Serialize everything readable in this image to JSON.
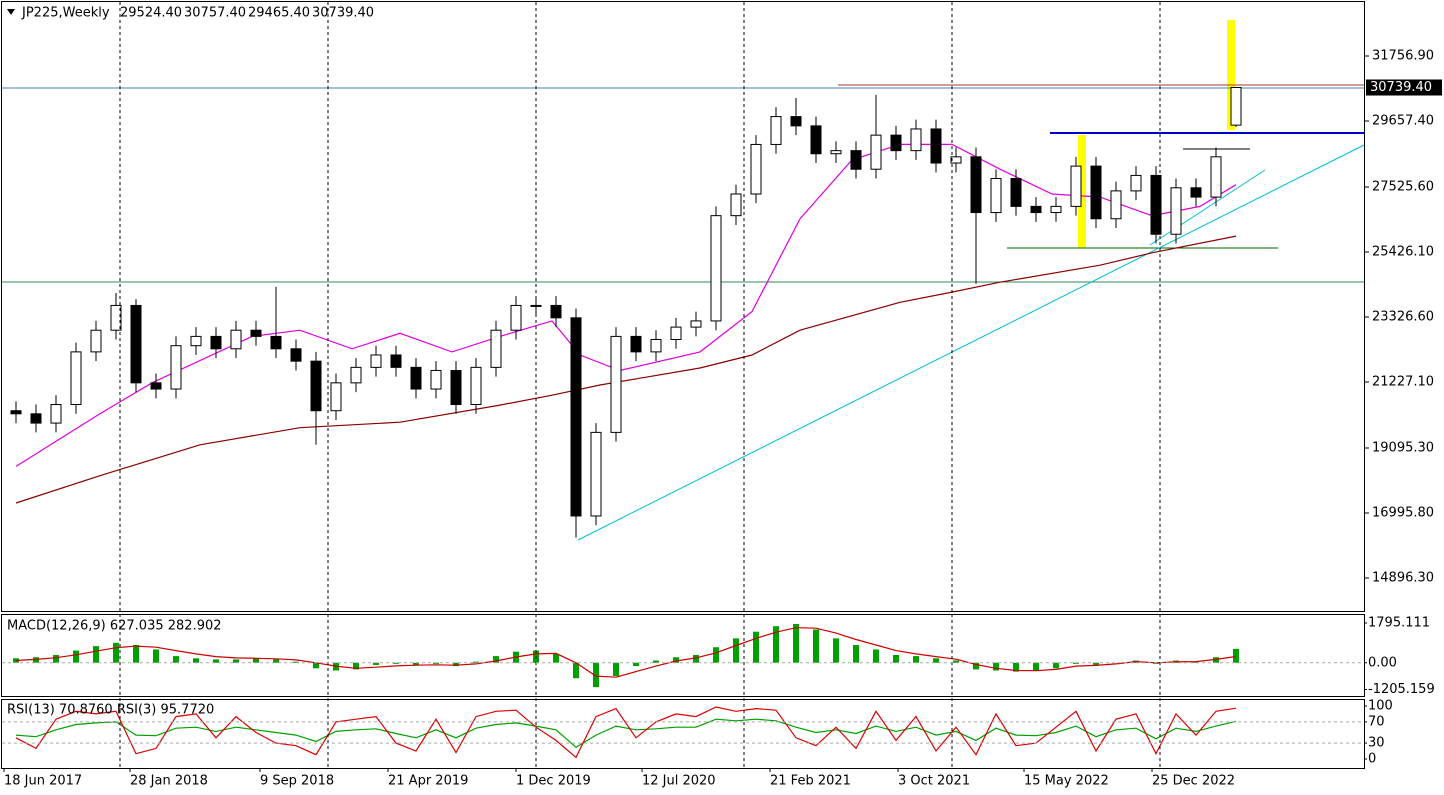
{
  "chart_data": [
    {
      "type": "candlestick",
      "header": {
        "symbol": "JP225,Weekly",
        "ohlc": [
          {
            "value": 29524.4,
            "label": "29524.40"
          },
          {
            "value": 30757.4,
            "label": "30757.40"
          },
          {
            "value": 29465.4,
            "label": "29465.40"
          },
          {
            "value": 30739.4,
            "label": "30739.40"
          }
        ]
      },
      "x": [
        0,
        5,
        10,
        15,
        20,
        25,
        30,
        35,
        40,
        45,
        50,
        55,
        60,
        65,
        70,
        75,
        80,
        85,
        90,
        95,
        100,
        105,
        110,
        115,
        120,
        125,
        130,
        135,
        140,
        145,
        150,
        155,
        160,
        165,
        170,
        175,
        180,
        185,
        190,
        195,
        200,
        205,
        210,
        215,
        220,
        225,
        230,
        235,
        240,
        245,
        250,
        255,
        260,
        265,
        270,
        275,
        280,
        285,
        290,
        295,
        300,
        305
      ],
      "open": [
        20300,
        20200,
        19900,
        20500,
        22200,
        22900,
        23700,
        21200,
        21000,
        22400,
        22700,
        22300,
        22900,
        22700,
        22300,
        21900,
        20300,
        21200,
        21700,
        22100,
        21700,
        21000,
        21600,
        20500,
        21700,
        22900,
        23700,
        23700,
        23300,
        16900,
        19600,
        22700,
        22200,
        22600,
        23000,
        23200,
        26600,
        27300,
        28900,
        29800,
        29500,
        28600,
        28700,
        28100,
        29200,
        28700,
        29400,
        28300,
        28500,
        26700,
        27800,
        26900,
        26700,
        26900,
        28200,
        26500,
        27400,
        27900,
        26000,
        27500,
        27200,
        29524.4
      ],
      "high": [
        20600,
        20500,
        20800,
        22500,
        23200,
        24100,
        23900,
        21500,
        22700,
        23000,
        23000,
        23200,
        23200,
        24300,
        22600,
        22200,
        21500,
        22000,
        22400,
        22400,
        22000,
        21900,
        21900,
        22000,
        23200,
        24000,
        24000,
        24000,
        23600,
        19900,
        23000,
        23000,
        22900,
        23300,
        23500,
        26900,
        27600,
        29200,
        30100,
        30400,
        29800,
        29000,
        29000,
        30500,
        29500,
        29700,
        29700,
        28800,
        28800,
        28100,
        28100,
        27200,
        27200,
        28500,
        28500,
        27700,
        28200,
        28200,
        27800,
        27800,
        28800,
        30757.4
      ],
      "low": [
        19900,
        19600,
        19600,
        20200,
        21900,
        22600,
        20900,
        20700,
        20700,
        22100,
        22000,
        22000,
        22400,
        22000,
        21600,
        19200,
        20000,
        20900,
        21400,
        21400,
        20700,
        20700,
        20200,
        20200,
        21400,
        22600,
        23400,
        23000,
        16200,
        16600,
        19300,
        21900,
        21900,
        22300,
        22700,
        22900,
        26300,
        27000,
        28600,
        29200,
        28300,
        28300,
        27800,
        27800,
        28400,
        28400,
        28000,
        28000,
        24400,
        26400,
        26600,
        26400,
        26400,
        26600,
        26200,
        26200,
        27100,
        25700,
        25700,
        26900,
        26900,
        29465.4
      ],
      "close": [
        20200,
        19900,
        20500,
        22200,
        22900,
        23700,
        21200,
        21000,
        22400,
        22700,
        22300,
        22900,
        22700,
        22300,
        21900,
        20300,
        21200,
        21700,
        22100,
        21700,
        21000,
        21600,
        20500,
        21700,
        22900,
        23700,
        23700,
        23300,
        16900,
        19600,
        22700,
        22200,
        22600,
        23000,
        23200,
        26600,
        27300,
        28900,
        29800,
        29500,
        28600,
        28700,
        28100,
        29200,
        28700,
        29400,
        28300,
        28500,
        26700,
        27800,
        26900,
        26700,
        26900,
        28200,
        26500,
        27400,
        27900,
        26000,
        27500,
        27200,
        28500,
        30739.4
      ],
      "up_color": "#ffffff",
      "down_color": "#000000",
      "xlim": [
        -4,
        337
      ],
      "ylim": [
        13798.2,
        33565.7
      ],
      "yticks": [
        {
          "value": 31756.9,
          "label": "31756.90"
        },
        {
          "value": 29657.4,
          "label": "29657.40"
        },
        {
          "value": 27525.6,
          "label": "27525.60"
        },
        {
          "value": 25426.1,
          "label": "25426.10"
        },
        {
          "value": 23326.6,
          "label": "23326.60"
        },
        {
          "value": 21227.1,
          "label": "21227.10"
        },
        {
          "value": 19095.3,
          "label": "19095.30"
        },
        {
          "value": 16995.8,
          "label": "16995.80"
        },
        {
          "value": 14896.3,
          "label": "14896.30"
        }
      ],
      "xticks": [
        {
          "value": -3,
          "label": "18 Jun 2017"
        },
        {
          "value": 28.5,
          "label": "28 Jan 2018"
        },
        {
          "value": 61,
          "label": "9 Sep 2018"
        },
        {
          "value": 93,
          "label": "21 Apr 2019"
        },
        {
          "value": 125,
          "label": "1 Dec 2019"
        },
        {
          "value": 156.5,
          "label": "12 Jul 2020"
        },
        {
          "value": 188.5,
          "label": "21 Feb 2021"
        },
        {
          "value": 220.5,
          "label": "3 Oct 2021"
        },
        {
          "value": 252,
          "label": "15 May 2022"
        },
        {
          "value": 284,
          "label": "25 Dec 2022"
        }
      ],
      "separators": [
        26,
        78,
        130,
        182,
        234,
        286
      ],
      "last_price": {
        "value": 30739.4,
        "label": "30739.40"
      },
      "series": [
        {
          "color": "#e000e0",
          "x": [
            0,
            21,
            34,
            59,
            71,
            84,
            96,
            109,
            121,
            134,
            141,
            151,
            171,
            184,
            196,
            209,
            221,
            234,
            246,
            259,
            271,
            284,
            296,
            305
          ],
          "values": [
            18500,
            20200,
            21200,
            22700,
            22900,
            22300,
            22800,
            22200,
            22700,
            23200,
            22100,
            21600,
            22200,
            23500,
            26500,
            28400,
            28900,
            28900,
            28100,
            27300,
            27200,
            26600,
            26900,
            27600
          ]
        },
        {
          "color": "#8b0000",
          "x": [
            0,
            21,
            46,
            71,
            96,
            121,
            134,
            146,
            171,
            184,
            196,
            221,
            234,
            246,
            271,
            284,
            305
          ],
          "values": [
            17320,
            18200,
            19200,
            19750,
            19930,
            20480,
            20800,
            21130,
            21680,
            22100,
            22900,
            23800,
            24130,
            24450,
            25000,
            25400,
            25940
          ]
        }
      ],
      "levels": [
        {
          "color": "#4682b4",
          "x": [
            -4,
            337
          ],
          "value": 30723
        },
        {
          "color": "#b03030",
          "x": [
            205.5,
            337
          ],
          "value": 30820
        },
        {
          "color": "#0000cc",
          "x": [
            258.5,
            337
          ],
          "value": 29270
        },
        {
          "color": "#2e8b57",
          "x": [
            -4,
            337
          ],
          "value": 24457
        },
        {
          "color": "#006400",
          "x": [
            247.75,
            315.5
          ],
          "value": 25555
        },
        {
          "color": "#000000",
          "x": [
            291.75,
            308.5
          ],
          "value": 28753
        }
      ],
      "trendlines": [
        {
          "color": "#00bcd4",
          "x": [
            140.5,
            337
          ],
          "values": [
            16124,
            28882
          ]
        },
        {
          "color": "#00bcd4",
          "x": [
            283.5,
            312.25
          ],
          "values": [
            25652,
            28075
          ]
        }
      ],
      "highlights": [
        {
          "color": "#ffff00",
          "x": [
            265.5,
            267.5
          ],
          "values": [
            29205,
            25555
          ]
        },
        {
          "color": "#ffff00",
          "x": [
            302.75,
            304.75
          ],
          "values": [
            32920,
            29366
          ]
        }
      ]
    },
    {
      "type": "macd",
      "title": "MACD(12,26,9) 627.035 282.902",
      "ylim": [
        -1500,
        2200
      ],
      "yticks": [
        1795.111,
        {
          "value": 0,
          "label": "0.00"
        },
        -1205.159
      ],
      "histogram": {
        "color": "#00a000",
        "values": [
          200,
          250,
          350,
          550,
          750,
          900,
          800,
          600,
          300,
          200,
          150,
          150,
          200,
          150,
          50,
          -250,
          -350,
          -300,
          -100,
          -50,
          -100,
          -50,
          -150,
          50,
          300,
          500,
          550,
          400,
          -700,
          -1100,
          -600,
          -150,
          100,
          250,
          350,
          700,
          1100,
          1400,
          1650,
          1750,
          1500,
          1100,
          800,
          600,
          350,
          300,
          200,
          100,
          -300,
          -350,
          -400,
          -350,
          -250,
          -50,
          -100,
          0,
          100,
          -50,
          100,
          50,
          250,
          627.035
        ]
      },
      "signal": {
        "color": "#cc0000",
        "values": [
          100,
          150,
          230,
          360,
          520,
          680,
          750,
          700,
          550,
          400,
          280,
          220,
          200,
          180,
          130,
          0,
          -150,
          -250,
          -200,
          -140,
          -110,
          -90,
          -110,
          -50,
          80,
          260,
          400,
          420,
          0,
          -600,
          -650,
          -400,
          -150,
          80,
          220,
          450,
          780,
          1100,
          1380,
          1580,
          1560,
          1340,
          1050,
          800,
          550,
          400,
          280,
          160,
          -80,
          -250,
          -350,
          -360,
          -300,
          -150,
          -120,
          -50,
          50,
          0,
          40,
          50,
          150,
          282.902
        ]
      }
    },
    {
      "type": "line",
      "title": "RSI(13) 70.8760  RSI(3) 95.7720",
      "ylim": [
        -17,
        111.3
      ],
      "yticks": [
        100,
        70,
        30,
        0
      ],
      "dotted": [
        70,
        30
      ],
      "series": [
        {
          "color": "#00a000",
          "values": [
            45,
            42,
            55,
            65,
            68,
            70,
            45,
            44,
            58,
            60,
            52,
            60,
            55,
            50,
            45,
            33,
            52,
            55,
            57,
            48,
            40,
            55,
            40,
            58,
            65,
            68,
            62,
            55,
            22,
            45,
            62,
            55,
            57,
            60,
            60,
            75,
            72,
            75,
            72,
            60,
            50,
            55,
            48,
            62,
            52,
            60,
            45,
            52,
            35,
            58,
            45,
            44,
            50,
            62,
            42,
            55,
            58,
            38,
            58,
            52,
            62,
            70.876
          ]
        },
        {
          "color": "#dd0000",
          "values": [
            40,
            20,
            75,
            90,
            85,
            90,
            10,
            20,
            80,
            85,
            40,
            80,
            50,
            30,
            25,
            8,
            70,
            75,
            80,
            30,
            15,
            75,
            12,
            80,
            90,
            92,
            60,
            35,
            3,
            80,
            95,
            40,
            70,
            85,
            80,
            98,
            90,
            95,
            92,
            40,
            25,
            60,
            20,
            90,
            35,
            80,
            15,
            60,
            8,
            85,
            25,
            30,
            60,
            90,
            15,
            75,
            85,
            10,
            85,
            45,
            90,
            95.772
          ]
        }
      ]
    }
  ]
}
